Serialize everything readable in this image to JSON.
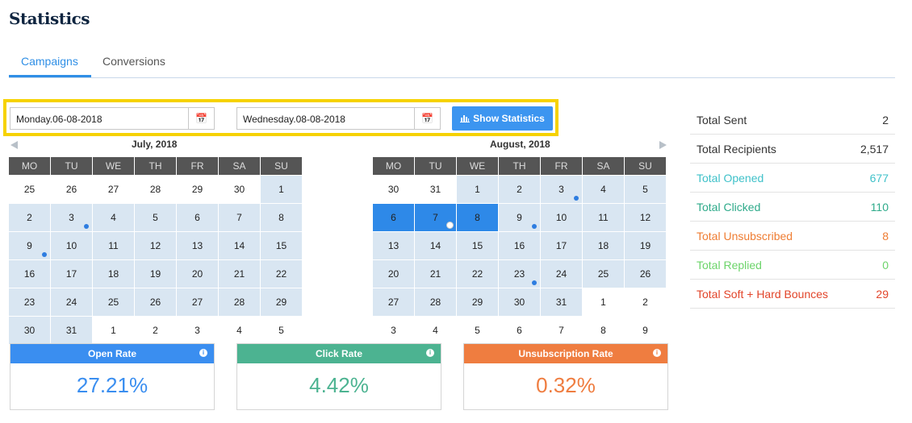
{
  "page": {
    "title": "Statistics"
  },
  "tabs": [
    {
      "label": "Campaigns",
      "active": true
    },
    {
      "label": "Conversions",
      "active": false
    }
  ],
  "filters": {
    "start_date": "Monday.06-08-2018",
    "end_date": "Wednesday.08-08-2018",
    "show_button": "Show Statistics",
    "calendar_icon": "calendar-icon",
    "chart_icon": "bar-chart-icon"
  },
  "calendars": {
    "weekdays": [
      "MO",
      "TU",
      "WE",
      "TH",
      "FR",
      "SA",
      "SU"
    ],
    "months": [
      {
        "title": "July, 2018",
        "weeks": [
          [
            {
              "d": "25",
              "t": "dim"
            },
            {
              "d": "26",
              "t": "dim"
            },
            {
              "d": "27",
              "t": "dim"
            },
            {
              "d": "28",
              "t": "dim"
            },
            {
              "d": "29",
              "t": "dim"
            },
            {
              "d": "30",
              "t": "dim"
            },
            {
              "d": "1",
              "t": "in"
            }
          ],
          [
            {
              "d": "2",
              "t": "in"
            },
            {
              "d": "3",
              "t": "in",
              "dot": true
            },
            {
              "d": "4",
              "t": "in"
            },
            {
              "d": "5",
              "t": "in"
            },
            {
              "d": "6",
              "t": "in"
            },
            {
              "d": "7",
              "t": "in"
            },
            {
              "d": "8",
              "t": "in"
            }
          ],
          [
            {
              "d": "9",
              "t": "in",
              "dot": true
            },
            {
              "d": "10",
              "t": "in"
            },
            {
              "d": "11",
              "t": "in"
            },
            {
              "d": "12",
              "t": "in"
            },
            {
              "d": "13",
              "t": "in"
            },
            {
              "d": "14",
              "t": "in"
            },
            {
              "d": "15",
              "t": "in"
            }
          ],
          [
            {
              "d": "16",
              "t": "in"
            },
            {
              "d": "17",
              "t": "in"
            },
            {
              "d": "18",
              "t": "in"
            },
            {
              "d": "19",
              "t": "in"
            },
            {
              "d": "20",
              "t": "in"
            },
            {
              "d": "21",
              "t": "in"
            },
            {
              "d": "22",
              "t": "in"
            }
          ],
          [
            {
              "d": "23",
              "t": "in"
            },
            {
              "d": "24",
              "t": "in"
            },
            {
              "d": "25",
              "t": "in"
            },
            {
              "d": "26",
              "t": "in"
            },
            {
              "d": "27",
              "t": "in"
            },
            {
              "d": "28",
              "t": "in"
            },
            {
              "d": "29",
              "t": "in"
            }
          ],
          [
            {
              "d": "30",
              "t": "in"
            },
            {
              "d": "31",
              "t": "in"
            },
            {
              "d": "1",
              "t": "dim"
            },
            {
              "d": "2",
              "t": "dim"
            },
            {
              "d": "3",
              "t": "dim"
            },
            {
              "d": "4",
              "t": "dim"
            },
            {
              "d": "5",
              "t": "dim"
            }
          ]
        ]
      },
      {
        "title": "August, 2018",
        "weeks": [
          [
            {
              "d": "30",
              "t": "dim"
            },
            {
              "d": "31",
              "t": "dim"
            },
            {
              "d": "1",
              "t": "in"
            },
            {
              "d": "2",
              "t": "in"
            },
            {
              "d": "3",
              "t": "in",
              "dot": true
            },
            {
              "d": "4",
              "t": "in"
            },
            {
              "d": "5",
              "t": "in"
            }
          ],
          [
            {
              "d": "6",
              "t": "sel"
            },
            {
              "d": "7",
              "t": "sel",
              "ring": true
            },
            {
              "d": "8",
              "t": "sel"
            },
            {
              "d": "9",
              "t": "in",
              "dot": true
            },
            {
              "d": "10",
              "t": "in"
            },
            {
              "d": "11",
              "t": "in"
            },
            {
              "d": "12",
              "t": "in"
            }
          ],
          [
            {
              "d": "13",
              "t": "in"
            },
            {
              "d": "14",
              "t": "in"
            },
            {
              "d": "15",
              "t": "in"
            },
            {
              "d": "16",
              "t": "in"
            },
            {
              "d": "17",
              "t": "in"
            },
            {
              "d": "18",
              "t": "in"
            },
            {
              "d": "19",
              "t": "in"
            }
          ],
          [
            {
              "d": "20",
              "t": "in"
            },
            {
              "d": "21",
              "t": "in"
            },
            {
              "d": "22",
              "t": "in"
            },
            {
              "d": "23",
              "t": "in",
              "dot": true
            },
            {
              "d": "24",
              "t": "in"
            },
            {
              "d": "25",
              "t": "in"
            },
            {
              "d": "26",
              "t": "in"
            }
          ],
          [
            {
              "d": "27",
              "t": "in"
            },
            {
              "d": "28",
              "t": "in"
            },
            {
              "d": "29",
              "t": "in"
            },
            {
              "d": "30",
              "t": "in"
            },
            {
              "d": "31",
              "t": "in"
            },
            {
              "d": "1",
              "t": "dim"
            },
            {
              "d": "2",
              "t": "dim"
            }
          ],
          [
            {
              "d": "3",
              "t": "dim"
            },
            {
              "d": "4",
              "t": "dim"
            },
            {
              "d": "5",
              "t": "dim"
            },
            {
              "d": "6",
              "t": "dim"
            },
            {
              "d": "7",
              "t": "dim"
            },
            {
              "d": "8",
              "t": "dim"
            },
            {
              "d": "9",
              "t": "dim"
            }
          ]
        ]
      }
    ]
  },
  "stats": [
    {
      "label": "Total Sent",
      "value": "2",
      "color": "#333333"
    },
    {
      "label": "Total Recipients",
      "value": "2,517",
      "color": "#333333"
    },
    {
      "label": "Total Opened",
      "value": "677",
      "color": "#3fc1c9"
    },
    {
      "label": "Total Clicked",
      "value": "110",
      "color": "#2eaa8a"
    },
    {
      "label": "Total Unsubscribed",
      "value": "8",
      "color": "#ef7d33"
    },
    {
      "label": "Total Replied",
      "value": "0",
      "color": "#6cd46a"
    },
    {
      "label": "Total Soft + Hard Bounces",
      "value": "29",
      "color": "#e2452a"
    }
  ],
  "rates": [
    {
      "label": "Open Rate",
      "value": "27.21%",
      "color": "#3a8ef0"
    },
    {
      "label": "Click Rate",
      "value": "4.42%",
      "color": "#4cb391"
    },
    {
      "label": "Unsubscription Rate",
      "value": "0.32%",
      "color": "#ef7d40"
    }
  ],
  "info_icon": "i"
}
